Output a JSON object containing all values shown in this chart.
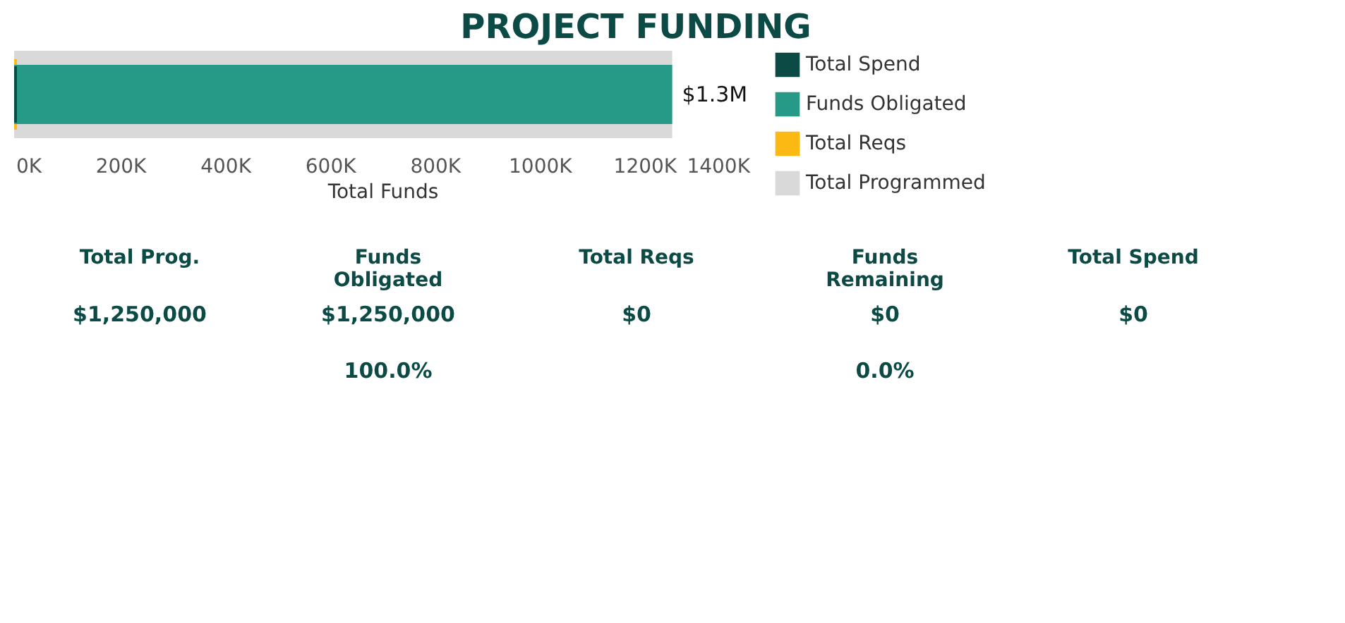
{
  "chart_data": [
    {
      "type": "bar",
      "title": "PROJECT FUNDING",
      "orientation": "horizontal",
      "categories": [
        null
      ],
      "xlabel": "Total Funds",
      "xlim": [
        0,
        1400000
      ],
      "xticks": [
        {
          "value": 0,
          "label": "0K"
        },
        {
          "value": 200000,
          "label": "200K"
        },
        {
          "value": 400000,
          "label": "400K"
        },
        {
          "value": 600000,
          "label": "600K"
        },
        {
          "value": 800000,
          "label": "800K"
        },
        {
          "value": 1000000,
          "label": "1000K"
        },
        {
          "value": 1200000,
          "label": "1200K"
        },
        {
          "value": 1400000,
          "label": "1400K"
        }
      ],
      "legend": "right",
      "series": [
        {
          "name": "Total Spend",
          "color": "#0b4a45",
          "values": [
            0
          ]
        },
        {
          "name": "Funds Obligated",
          "color": "#279a87",
          "values": [
            1250000
          ],
          "value_labels": [
            "$1.3M"
          ]
        },
        {
          "name": "Total Reqs",
          "color": "#fdb913",
          "values": [
            0
          ]
        },
        {
          "name": "Total Programmed",
          "color": "#d9d9d9",
          "values": [
            1250000
          ]
        }
      ]
    },
    {
      "type": "other",
      "categories": [
        "Total Prog.",
        "Funds Obligated",
        "Total Reqs",
        "Funds Remaining",
        "Total Spend"
      ],
      "series": [
        {
          "values": [
            1250000,
            1250000,
            0,
            0,
            0
          ],
          "value_labels": [
            "$1,250,000",
            "$1,250,000",
            "$0",
            "$0",
            "$0"
          ]
        },
        {
          "values": [
            null,
            100.0,
            null,
            0.0,
            null
          ],
          "value_labels": [
            null,
            "100.0%",
            null,
            "0.0%",
            null
          ]
        }
      ]
    }
  ]
}
